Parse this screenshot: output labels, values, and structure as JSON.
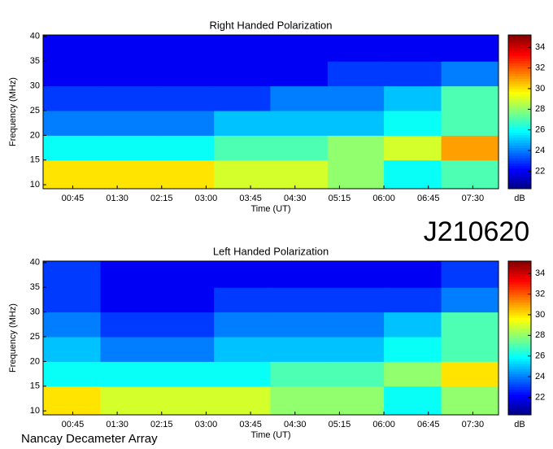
{
  "chart_data": [
    {
      "type": "heatmap",
      "title": "Right Handed Polarization",
      "xlabel": "Time (UT)",
      "ylabel": "Frequency (MHz)",
      "colorbar_label": "dB",
      "colormap": "jet",
      "x_edges": [
        15,
        73,
        130,
        188,
        245,
        303,
        360,
        418,
        476
      ],
      "y_edges": [
        9.2,
        15,
        20,
        25,
        30,
        35,
        40.3
      ],
      "values": [
        [
          30,
          30,
          30,
          29,
          29,
          28,
          26,
          27
        ],
        [
          26,
          26,
          26,
          27,
          27,
          28,
          29,
          31
        ],
        [
          24,
          24,
          24,
          25,
          25,
          25,
          26,
          27
        ],
        [
          23,
          23,
          23,
          23,
          24,
          24,
          25,
          27
        ],
        [
          22,
          22,
          22,
          22,
          22,
          23,
          23,
          24
        ],
        [
          22,
          22,
          22,
          22,
          22,
          22,
          22,
          22
        ]
      ],
      "xlim": [
        15,
        476
      ],
      "ylim": [
        9.2,
        40.3
      ],
      "clim": [
        20.3,
        35.2
      ],
      "xticks": [
        {
          "value": 45,
          "label": "00:45"
        },
        {
          "value": 90,
          "label": "01:30"
        },
        {
          "value": 135,
          "label": "02:15"
        },
        {
          "value": 180,
          "label": "03:00"
        },
        {
          "value": 225,
          "label": "03:45"
        },
        {
          "value": 270,
          "label": "04:30"
        },
        {
          "value": 315,
          "label": "05:15"
        },
        {
          "value": 360,
          "label": "06:00"
        },
        {
          "value": 405,
          "label": "06:45"
        },
        {
          "value": 450,
          "label": "07:30"
        }
      ],
      "yticks": [
        10,
        15,
        20,
        25,
        30,
        35,
        40
      ],
      "cticks": [
        22,
        24,
        26,
        28,
        30,
        32,
        34
      ]
    },
    {
      "type": "heatmap",
      "title": "Left Handed Polarization",
      "xlabel": "Time (UT)",
      "ylabel": "Frequency (MHz)",
      "colorbar_label": "dB",
      "colormap": "jet",
      "x_edges": [
        15,
        73,
        130,
        188,
        245,
        303,
        360,
        418,
        476
      ],
      "y_edges": [
        9.2,
        15,
        20,
        25,
        30,
        35,
        40.3
      ],
      "values": [
        [
          30,
          29,
          29,
          29,
          28,
          28,
          26,
          28
        ],
        [
          26,
          26,
          26,
          26,
          27,
          27,
          28,
          30
        ],
        [
          25,
          24,
          24,
          25,
          25,
          25,
          26,
          27
        ],
        [
          24,
          23,
          23,
          24,
          24,
          24,
          25,
          27
        ],
        [
          23,
          22,
          22,
          23,
          23,
          23,
          23,
          24
        ],
        [
          23,
          22,
          22,
          22,
          22,
          22,
          22,
          23
        ]
      ],
      "xlim": [
        15,
        476
      ],
      "ylim": [
        9.2,
        40.3
      ],
      "clim": [
        20.3,
        35.2
      ],
      "xticks": [
        {
          "value": 45,
          "label": "00:45"
        },
        {
          "value": 90,
          "label": "01:30"
        },
        {
          "value": 135,
          "label": "02:15"
        },
        {
          "value": 180,
          "label": "03:00"
        },
        {
          "value": 225,
          "label": "03:45"
        },
        {
          "value": 270,
          "label": "04:30"
        },
        {
          "value": 315,
          "label": "05:15"
        },
        {
          "value": 360,
          "label": "06:00"
        },
        {
          "value": 405,
          "label": "06:45"
        },
        {
          "value": 450,
          "label": "07:30"
        }
      ],
      "yticks": [
        10,
        15,
        20,
        25,
        30,
        35,
        40
      ],
      "cticks": [
        22,
        24,
        26,
        28,
        30,
        32,
        34
      ]
    }
  ],
  "label": "J210620",
  "footer": "Nancay Decameter Array"
}
